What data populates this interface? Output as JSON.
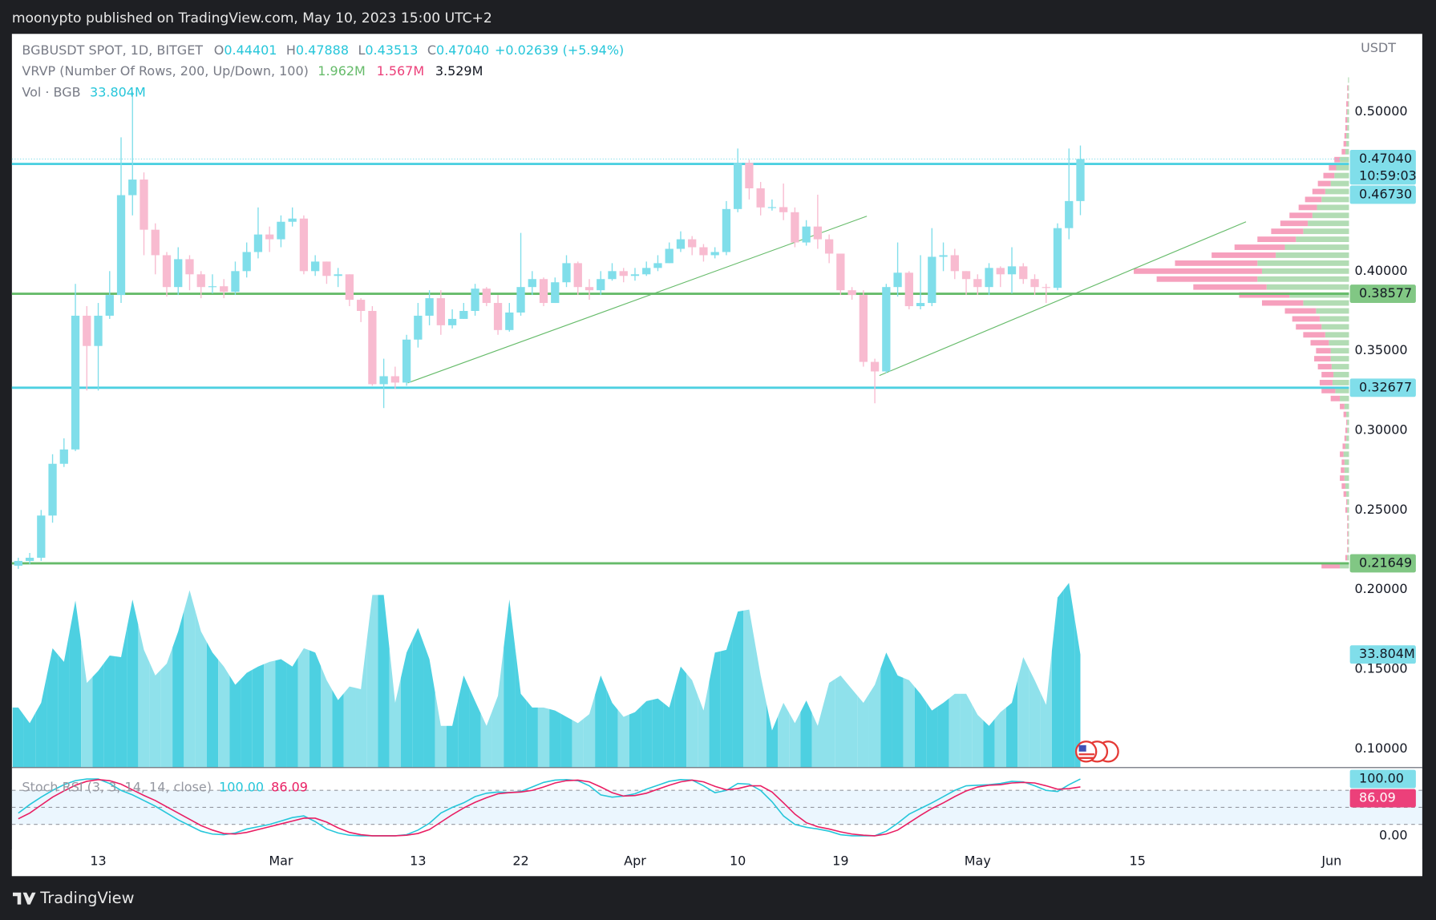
{
  "header": {
    "publisher": "moonypto published on TradingView.com, May 10, 2023 15:00 UTC+2"
  },
  "footer": {
    "brand": "TradingView"
  },
  "chart_data": {
    "type": "candlestick",
    "legend": {
      "symbol": "BGBUSDT SPOT, 1D, BITGET",
      "ohlc": [
        {
          "key": "O",
          "value": "0.44401"
        },
        {
          "key": "H",
          "value": "0.47888"
        },
        {
          "key": "L",
          "value": "0.43513"
        },
        {
          "key": "C",
          "value": "0.47040"
        }
      ],
      "change": "+0.02639 (+5.94%)",
      "vrvp": {
        "name": "VRVP (Number Of Rows, 200, Up/Down, 100)",
        "up": "1.962M",
        "down": "1.567M",
        "total": "3.529M"
      },
      "volume": {
        "name": "Vol · BGB",
        "value": "33.804M"
      }
    },
    "open": [
      0.215,
      0.218,
      0.22,
      0.2465,
      0.279,
      0.288,
      0.372,
      0.353,
      0.372,
      0.385,
      0.4477,
      0.4575,
      0.426,
      0.41,
      0.39,
      0.4075,
      0.398,
      0.39,
      0.3905,
      0.387,
      0.4,
      0.412,
      0.423,
      0.42,
      0.431,
      0.433,
      0.4,
      0.406,
      0.397,
      0.398,
      0.382,
      0.375,
      0.329,
      0.334,
      0.33,
      0.357,
      0.372,
      0.383,
      0.366,
      0.37,
      0.375,
      0.389,
      0.38,
      0.363,
      0.374,
      0.39,
      0.395,
      0.38,
      0.393,
      0.405,
      0.39,
      0.388,
      0.395,
      0.4,
      0.397,
      0.398,
      0.402,
      0.405,
      0.414,
      0.42,
      0.415,
      0.41,
      0.412,
      0.439,
      0.468,
      0.452,
      0.44,
      0.4402,
      0.437,
      0.418,
      0.428,
      0.42,
      0.411,
      0.388,
      0.385,
      0.343,
      0.337,
      0.39,
      0.399,
      0.378,
      0.38,
      0.409,
      0.41,
      0.4,
      0.395,
      0.39,
      0.402,
      0.398,
      0.403,
      0.395,
      0.39,
      0.3895,
      0.427,
      0.44401
    ],
    "high": [
      0.22,
      0.223,
      0.25,
      0.285,
      0.295,
      0.392,
      0.378,
      0.38,
      0.4,
      0.484,
      0.5126,
      0.462,
      0.43,
      0.412,
      0.415,
      0.41,
      0.4,
      0.398,
      0.395,
      0.406,
      0.418,
      0.44,
      0.428,
      0.435,
      0.44,
      0.435,
      0.41,
      0.406,
      0.402,
      0.398,
      0.383,
      0.378,
      0.345,
      0.34,
      0.36,
      0.38,
      0.388,
      0.388,
      0.376,
      0.38,
      0.392,
      0.39,
      0.385,
      0.38,
      0.424,
      0.4,
      0.396,
      0.396,
      0.41,
      0.406,
      0.395,
      0.4,
      0.405,
      0.402,
      0.402,
      0.406,
      0.41,
      0.418,
      0.425,
      0.422,
      0.417,
      0.415,
      0.444,
      0.477,
      0.47,
      0.456,
      0.445,
      0.455,
      0.44,
      0.432,
      0.448,
      0.423,
      0.41,
      0.39,
      0.388,
      0.345,
      0.392,
      0.418,
      0.4,
      0.41,
      0.427,
      0.418,
      0.414,
      0.4,
      0.398,
      0.405,
      0.403,
      0.415,
      0.405,
      0.398,
      0.392,
      0.43,
      0.477,
      0.47888
    ],
    "low": [
      0.213,
      0.216,
      0.218,
      0.242,
      0.277,
      0.287,
      0.325,
      0.325,
      0.37,
      0.38,
      0.435,
      0.41,
      0.398,
      0.384,
      0.385,
      0.388,
      0.383,
      0.386,
      0.383,
      0.385,
      0.396,
      0.408,
      0.412,
      0.415,
      0.428,
      0.398,
      0.397,
      0.392,
      0.39,
      0.378,
      0.368,
      0.328,
      0.314,
      0.326,
      0.328,
      0.352,
      0.366,
      0.36,
      0.364,
      0.37,
      0.372,
      0.378,
      0.36,
      0.362,
      0.372,
      0.385,
      0.378,
      0.38,
      0.39,
      0.385,
      0.382,
      0.385,
      0.394,
      0.393,
      0.394,
      0.397,
      0.4,
      0.405,
      0.412,
      0.41,
      0.406,
      0.408,
      0.41,
      0.437,
      0.445,
      0.435,
      0.438,
      0.432,
      0.415,
      0.416,
      0.414,
      0.405,
      0.385,
      0.382,
      0.34,
      0.317,
      0.336,
      0.384,
      0.376,
      0.376,
      0.378,
      0.4,
      0.395,
      0.385,
      0.385,
      0.385,
      0.39,
      0.386,
      0.392,
      0.385,
      0.38,
      0.388,
      0.42,
      0.43513
    ],
    "close": [
      0.218,
      0.22,
      0.2465,
      0.279,
      0.288,
      0.372,
      0.353,
      0.372,
      0.385,
      0.4477,
      0.4575,
      0.426,
      0.41,
      0.39,
      0.4075,
      0.398,
      0.39,
      0.3905,
      0.387,
      0.4,
      0.412,
      0.423,
      0.42,
      0.431,
      0.433,
      0.4,
      0.406,
      0.397,
      0.398,
      0.382,
      0.375,
      0.329,
      0.334,
      0.33,
      0.357,
      0.372,
      0.383,
      0.366,
      0.37,
      0.375,
      0.389,
      0.38,
      0.363,
      0.374,
      0.39,
      0.395,
      0.38,
      0.393,
      0.405,
      0.39,
      0.388,
      0.395,
      0.4,
      0.397,
      0.398,
      0.402,
      0.405,
      0.414,
      0.42,
      0.415,
      0.41,
      0.412,
      0.439,
      0.468,
      0.452,
      0.44,
      0.4402,
      0.437,
      0.418,
      0.428,
      0.42,
      0.411,
      0.388,
      0.385,
      0.343,
      0.337,
      0.39,
      0.399,
      0.378,
      0.38,
      0.409,
      0.41,
      0.4,
      0.395,
      0.39,
      0.402,
      0.398,
      0.403,
      0.395,
      0.39,
      0.3895,
      0.427,
      0.44401,
      0.4704
    ],
    "last_price_label": "0.47040",
    "countdown": "10:59:03",
    "up_color": "#80deea",
    "down_color": "#f8bbd0",
    "xlim": [
      -0.56,
      116.52
    ],
    "xticks": [
      {
        "value": 7,
        "label": "13"
      },
      {
        "value": 23,
        "label": "Mar"
      },
      {
        "value": 35,
        "label": "13"
      },
      {
        "value": 44,
        "label": "22"
      },
      {
        "value": 54,
        "label": "Apr"
      },
      {
        "value": 63,
        "label": "10"
      },
      {
        "value": 72,
        "label": "19"
      },
      {
        "value": 84,
        "label": "May"
      },
      {
        "value": 98,
        "label": "15"
      },
      {
        "value": 115,
        "label": "Jun"
      }
    ],
    "ylim": [
      0.0885,
      0.549
    ],
    "y_unit": "USDT",
    "yticks": [
      {
        "value": 0.1,
        "label": "0.10000"
      },
      {
        "value": 0.15,
        "label": "0.15000"
      },
      {
        "value": 0.2,
        "label": "0.20000"
      },
      {
        "value": 0.25,
        "label": "0.25000"
      },
      {
        "value": 0.3,
        "label": "0.30000"
      },
      {
        "value": 0.35,
        "label": "0.35000"
      },
      {
        "value": 0.4,
        "label": "0.40000"
      },
      {
        "value": 0.5,
        "label": "0.50000"
      }
    ],
    "levels": [
      {
        "value": 0.4673,
        "label": "0.46730",
        "color": "#4dd0e1"
      },
      {
        "value": 0.38577,
        "label": "0.38577",
        "color": "#66bb6a"
      },
      {
        "value": 0.32677,
        "label": "0.32677",
        "color": "#4dd0e1"
      },
      {
        "value": 0.21649,
        "label": "0.21649",
        "color": "#66bb6a"
      }
    ],
    "trendlines": [
      {
        "x": [
          34.1,
          74.3
        ],
        "y": [
          0.3298,
          0.4345
        ]
      },
      {
        "x": [
          75.4,
          107.5
        ],
        "y": [
          0.3344,
          0.431
        ]
      }
    ],
    "trendline_color": "#66bb6a",
    "volume": {
      "values": [
        17.9,
        13.2,
        19.3,
        35.7,
        31.6,
        50.0,
        25.3,
        28.9,
        33.5,
        33.0,
        50.3,
        35.2,
        27.5,
        31.1,
        40.7,
        53.1,
        40.7,
        34.4,
        30.2,
        24.7,
        28.3,
        30.2,
        31.6,
        32.4,
        30.2,
        35.7,
        34.4,
        26.1,
        20.1,
        24.2,
        23.4,
        51.7,
        51.7,
        19.3,
        34.4,
        41.8,
        32.4,
        12.4,
        12.4,
        27.5,
        19.8,
        12.4,
        21.4,
        50.3,
        22.0,
        17.9,
        17.9,
        17.0,
        15.1,
        13.2,
        15.9,
        27.5,
        19.3,
        15.1,
        16.5,
        19.8,
        20.6,
        17.9,
        30.2,
        26.1,
        17.0,
        34.4,
        35.2,
        46.7,
        47.3,
        27.5,
        11.0,
        19.3,
        13.2,
        20.0,
        12.4,
        25.3,
        27.5,
        23.4,
        19.3,
        24.7,
        34.4,
        27.5,
        26.1,
        22.0,
        17.0,
        19.3,
        22.0,
        22.0,
        15.7,
        12.4,
        16.5,
        19.3,
        33.0,
        26.1,
        18.7,
        50.9,
        55.3,
        33.804
      ],
      "ylim": [
        0,
        220.1
      ],
      "up_color": "#4dd0e1",
      "down_color": "#8fe1eb"
    },
    "vrvp": {
      "prices": [
        0.215,
        0.22,
        0.225,
        0.23,
        0.235,
        0.24,
        0.245,
        0.25,
        0.255,
        0.26,
        0.265,
        0.27,
        0.275,
        0.28,
        0.285,
        0.29,
        0.295,
        0.3,
        0.305,
        0.31,
        0.315,
        0.32,
        0.325,
        0.33,
        0.335,
        0.34,
        0.345,
        0.35,
        0.355,
        0.36,
        0.365,
        0.37,
        0.375,
        0.38,
        0.385,
        0.39,
        0.395,
        0.4,
        0.405,
        0.41,
        0.415,
        0.42,
        0.425,
        0.43,
        0.435,
        0.44,
        0.445,
        0.45,
        0.455,
        0.46,
        0.465,
        0.47,
        0.475,
        0.48,
        0.485,
        0.49,
        0.495,
        0.5,
        0.505,
        0.51,
        0.515,
        0.52
      ],
      "up": [
        10,
        2,
        1,
        1,
        1,
        1,
        1,
        2,
        2,
        3,
        4,
        5,
        5,
        5,
        6,
        4,
        3,
        2,
        2,
        3,
        5,
        10,
        15,
        18,
        17,
        19,
        20,
        20,
        22,
        26,
        30,
        32,
        36,
        50,
        65,
        90,
        100,
        95,
        100,
        80,
        70,
        58,
        50,
        45,
        40,
        35,
        30,
        26,
        20,
        16,
        14,
        10,
        4,
        3,
        3,
        2,
        2,
        2,
        1,
        1,
        1,
        1
      ],
      "down": [
        20,
        2,
        1,
        1,
        1,
        1,
        1,
        2,
        1,
        3,
        4,
        5,
        4,
        3,
        4,
        3,
        2,
        2,
        1,
        3,
        5,
        10,
        15,
        14,
        13,
        15,
        18,
        16,
        20,
        24,
        28,
        30,
        34,
        45,
        55,
        80,
        110,
        140,
        90,
        70,
        55,
        42,
        35,
        30,
        25,
        20,
        18,
        14,
        14,
        12,
        8,
        6,
        4,
        3,
        2,
        2,
        2,
        1,
        2,
        1,
        1,
        0
      ],
      "up_color": "#a5d6a7",
      "down_color": "#f48fb1"
    },
    "stoch": {
      "name": "Stoch RSI (3, 3, 14, 14, close)",
      "k_label": "100.00",
      "d_label": "86.09",
      "k": [
        40,
        55,
        68,
        80,
        90,
        97,
        100,
        100,
        92,
        80,
        72,
        62,
        52,
        40,
        28,
        18,
        8,
        3,
        2,
        5,
        12,
        16,
        20,
        26,
        32,
        35,
        25,
        12,
        5,
        1,
        0,
        0,
        0,
        0,
        2,
        10,
        22,
        40,
        50,
        58,
        69,
        75,
        77,
        76,
        78,
        86,
        94,
        98,
        99,
        97,
        88,
        72,
        68,
        70,
        74,
        82,
        89,
        96,
        99,
        98,
        88,
        76,
        80,
        92,
        91,
        80,
        60,
        35,
        20,
        15,
        12,
        8,
        2,
        0,
        0,
        0,
        8,
        22,
        38,
        48,
        58,
        69,
        80,
        88,
        89,
        90,
        92,
        96,
        95,
        88,
        80,
        78,
        90,
        100
      ],
      "d": [
        30,
        40,
        54,
        68,
        79,
        89,
        96,
        99,
        97,
        91,
        81,
        71,
        62,
        51,
        40,
        29,
        18,
        10,
        4,
        3,
        6,
        11,
        16,
        21,
        26,
        31,
        31,
        24,
        14,
        6,
        2,
        0,
        0,
        0,
        1,
        4,
        11,
        24,
        37,
        49,
        59,
        67,
        74,
        76,
        77,
        80,
        86,
        93,
        97,
        98,
        95,
        86,
        76,
        70,
        71,
        75,
        82,
        89,
        95,
        98,
        95,
        87,
        81,
        83,
        88,
        88,
        77,
        58,
        38,
        23,
        16,
        12,
        7,
        3,
        1,
        0,
        3,
        10,
        23,
        36,
        48,
        58,
        69,
        79,
        86,
        89,
        90,
        93,
        94,
        93,
        88,
        82,
        83,
        86.09
      ],
      "k_color": "#26c6da",
      "d_color": "#e91e63",
      "ylim": [
        -24.2,
        117.7
      ],
      "yticks": [
        {
          "value": 0,
          "label": "0.00"
        }
      ],
      "levels": [
        80,
        50,
        20
      ]
    }
  }
}
